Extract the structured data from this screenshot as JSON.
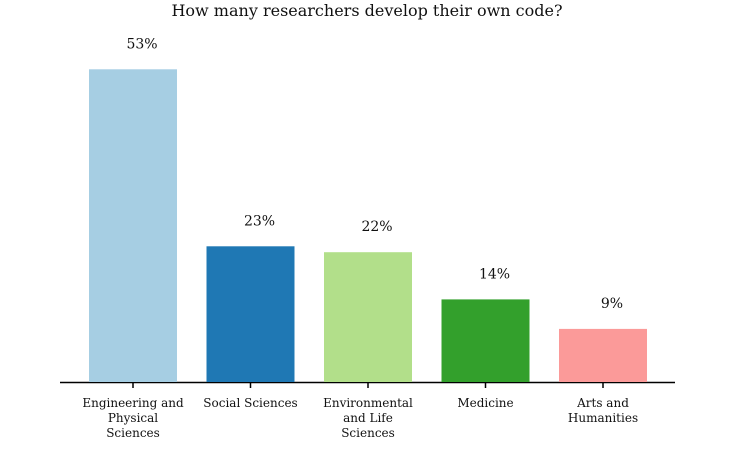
{
  "chart_data": {
    "type": "bar",
    "title": "How many researchers develop their own code?",
    "xlabel": "",
    "ylabel": "",
    "ylim": [
      0,
      60
    ],
    "grid": false,
    "categories": [
      [
        "Engineering and",
        "Physical",
        "Sciences"
      ],
      [
        "Social Sciences"
      ],
      [
        "Environmental",
        "and Life",
        "Sciences"
      ],
      [
        "Medicine"
      ],
      [
        "Arts and",
        "Humanities"
      ]
    ],
    "values": [
      53,
      23,
      22,
      14,
      9
    ],
    "value_labels": [
      "53%",
      "23%",
      "22%",
      "14%",
      "9%"
    ],
    "colors": [
      "#a6cee3",
      "#1f78b4",
      "#b2df8a",
      "#33a02c",
      "#fb9a99"
    ]
  }
}
